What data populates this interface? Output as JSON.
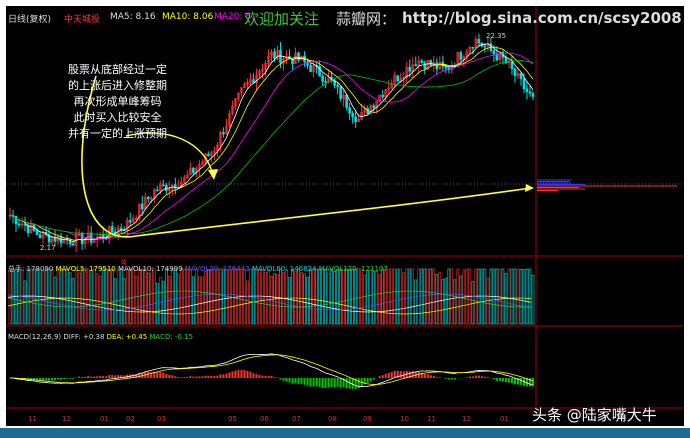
{
  "header": {
    "period": "日线(复权)",
    "stock_name": "中天城投",
    "ma5": "MA5: 8.16",
    "ma10": "MA10: 8.06",
    "ma20": "MA20: 8."
  },
  "watermark": {
    "welcome": "欢迎加关注",
    "site": "蒜瓣网：",
    "url": "http://blog.sina.com.cn/scsy2008"
  },
  "price_labels": {
    "high": "22.35",
    "low": "2.17"
  },
  "annotation": "股票从底部经过一定\n的上涨后进入修整期\n再次形成单峰筹码\n此时买入比较安全\n并有一定的上涨预期",
  "volume_header": {
    "total": "总手: 178090",
    "mavol5": "MAVOL5: 179510",
    "mavol10": "MAVOL10: 174999",
    "mavol20": "MAVOL20: 176443",
    "mavol60": "MAVOL60: 146824",
    "mavol120": "MAVOL120: 121107"
  },
  "macd_header": {
    "name": "MACD(12,26,9)",
    "diff": "DIFF: +0.38",
    "dea": "DEA: +0.45",
    "macd": "MACD: -0.15"
  },
  "logo": "头条 @陆家嘴大牛",
  "colors": {
    "up": "#ff3030",
    "down": "#00e0e0",
    "ma5": "#ffffff",
    "ma10": "#ffff00",
    "ma20": "#ff00ff",
    "arrow": "#ffff40"
  },
  "chart_data": {
    "type": "candlestick",
    "x_ticks": [
      "11",
      "12",
      "01",
      "02",
      "03",
      "05",
      "06",
      "07",
      "08",
      "09",
      "10",
      "11",
      "12",
      "01"
    ],
    "price_path": [
      5.05,
      3.13,
      2.65,
      2.84,
      4.09,
      7.46,
      8.42,
      11.3,
      17.06,
      20.43,
      19.95,
      18.0,
      14.2,
      17.5,
      19.95,
      19.0,
      21.9,
      19.95,
      16.1
    ],
    "high": 22.35,
    "low": 2.17
  }
}
